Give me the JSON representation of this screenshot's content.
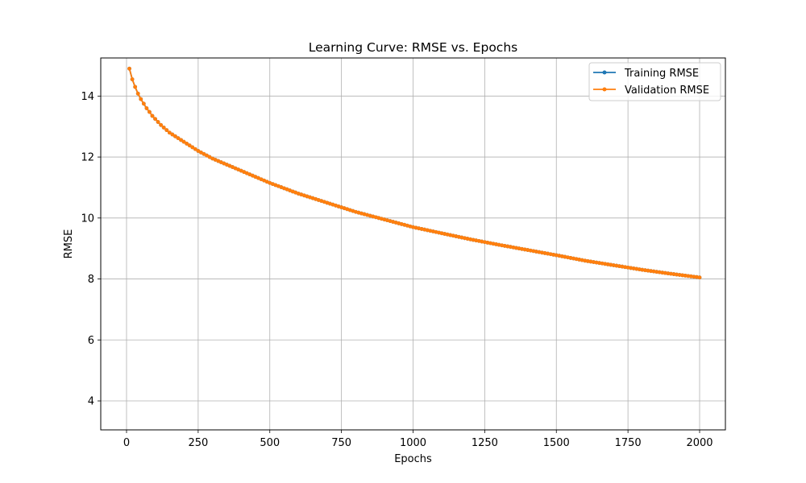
{
  "chart_data": {
    "type": "line",
    "title": "Learning Curve: RMSE vs. Epochs",
    "xlabel": "Epochs",
    "ylabel": "RMSE",
    "xlim": [
      -90,
      2090
    ],
    "ylim": [
      3.05,
      15.25
    ],
    "x_ticks": [
      0,
      250,
      500,
      750,
      1000,
      1250,
      1500,
      1750,
      2000
    ],
    "y_ticks": [
      4,
      6,
      8,
      10,
      12,
      14
    ],
    "x_tick_labels": [
      "0",
      "250",
      "500",
      "750",
      "1000",
      "1250",
      "1500",
      "1750",
      "2000"
    ],
    "y_tick_labels": [
      "4",
      "6",
      "8",
      "10",
      "12",
      "14"
    ],
    "grid": true,
    "legend_position": "top-right",
    "x_step": 10,
    "x_range": [
      10,
      2000
    ],
    "anchor_points": [
      [
        10,
        14.9
      ],
      [
        20,
        14.55
      ],
      [
        30,
        14.3
      ],
      [
        40,
        14.08
      ],
      [
        50,
        13.9
      ],
      [
        60,
        13.75
      ],
      [
        70,
        13.6
      ],
      [
        80,
        13.48
      ],
      [
        90,
        13.35
      ],
      [
        100,
        13.25
      ],
      [
        120,
        13.05
      ],
      [
        150,
        12.8
      ],
      [
        200,
        12.5
      ],
      [
        250,
        12.2
      ],
      [
        300,
        11.95
      ],
      [
        350,
        11.75
      ],
      [
        400,
        11.55
      ],
      [
        450,
        11.35
      ],
      [
        500,
        11.15
      ],
      [
        600,
        10.8
      ],
      [
        700,
        10.5
      ],
      [
        800,
        10.2
      ],
      [
        900,
        9.95
      ],
      [
        1000,
        9.7
      ],
      [
        1100,
        9.5
      ],
      [
        1200,
        9.3
      ],
      [
        1300,
        9.12
      ],
      [
        1400,
        8.95
      ],
      [
        1500,
        8.78
      ],
      [
        1600,
        8.6
      ],
      [
        1700,
        8.45
      ],
      [
        1800,
        8.3
      ],
      [
        1900,
        8.17
      ],
      [
        2000,
        8.05
      ]
    ],
    "series": [
      {
        "name": "Training RMSE",
        "color": "#1f77b4"
      },
      {
        "name": "Validation RMSE",
        "color": "#ff7f0e"
      }
    ]
  }
}
